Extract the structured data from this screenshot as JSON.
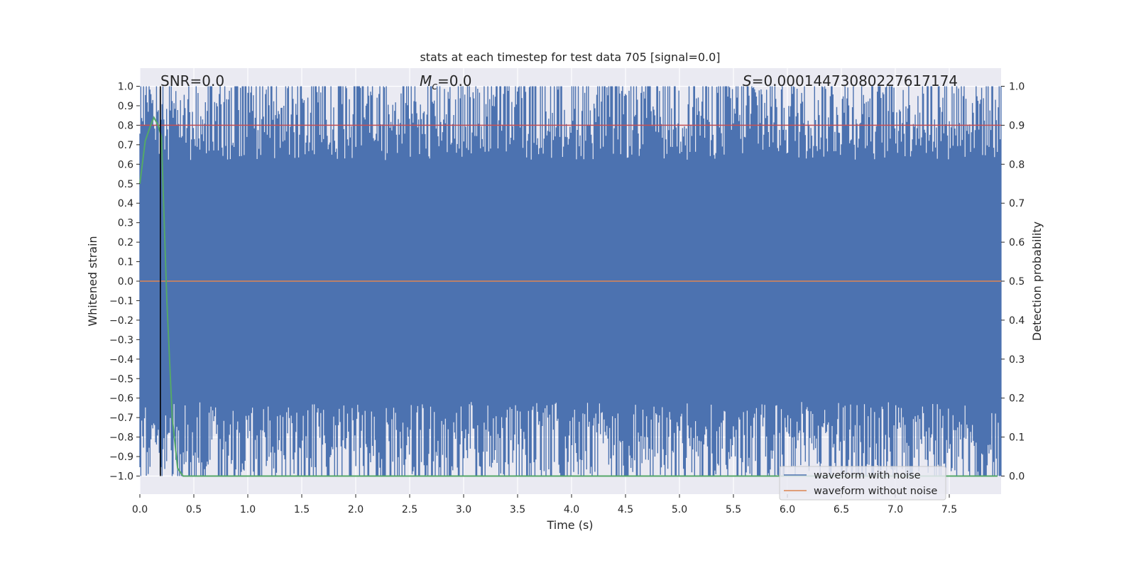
{
  "chart_data": {
    "type": "line",
    "title": "stats at each timestep for test data 705 [signal=0.0]",
    "xlabel": "Time (s)",
    "ylabel": "Whitened strain",
    "y2label": "Detection probability",
    "xlim": [
      0.0,
      8.0
    ],
    "ylim": [
      -1.0,
      1.0
    ],
    "y2lim": [
      0.0,
      1.0
    ],
    "xticks": [
      "0.0",
      "0.5",
      "1.0",
      "1.5",
      "2.0",
      "2.5",
      "3.0",
      "3.5",
      "4.0",
      "4.5",
      "5.0",
      "5.5",
      "6.0",
      "6.5",
      "7.0",
      "7.5"
    ],
    "yticks": [
      "1.0",
      "0.9",
      "0.8",
      "0.7",
      "0.6",
      "0.5",
      "0.4",
      "0.3",
      "0.2",
      "0.1",
      "0.0",
      "−0.1",
      "−0.2",
      "−0.3",
      "−0.4",
      "−0.5",
      "−0.6",
      "−0.7",
      "−0.8",
      "−0.9",
      "−1.0"
    ],
    "y2ticks": [
      "1.0",
      "0.9",
      "0.8",
      "0.7",
      "0.6",
      "0.5",
      "0.4",
      "0.3",
      "0.2",
      "0.1",
      "0.0"
    ],
    "grid": true,
    "legend_position": "bottom-right",
    "annotations": {
      "snr": "SNR=0.0",
      "mc_symbol": "M",
      "mc_sub": "c",
      "mc_value": "=0.0",
      "s_symbol": "S",
      "s_value": "=0.00014473080227617174"
    },
    "series": [
      {
        "name": "waveform with noise",
        "color": "#4c72b0",
        "axis": "left",
        "description_of_values": "whitened noise strain, saturating between -1.0 and 1.0"
      },
      {
        "name": "waveform without noise",
        "color": "#dd8452",
        "axis": "left",
        "x": [
          0.0,
          8.0
        ],
        "y": [
          0.0,
          0.0
        ]
      },
      {
        "color": "#55a868",
        "axis": "right",
        "x": [
          0.0,
          0.05,
          0.1,
          0.13,
          0.17,
          0.2,
          0.22,
          0.25,
          0.3,
          0.35,
          0.4,
          1.0,
          2.0,
          3.0,
          4.0,
          5.0,
          6.0,
          7.0,
          8.0
        ],
        "y": [
          0.75,
          0.86,
          0.9,
          0.92,
          0.9,
          0.87,
          0.7,
          0.45,
          0.15,
          0.02,
          0.0,
          0.0,
          0.0,
          0.0,
          0.0,
          0.0,
          0.0,
          0.0,
          0.0
        ]
      },
      {
        "color": "#c44e52",
        "axis": "right",
        "x": [
          0.0,
          8.0
        ],
        "y": [
          0.9,
          0.9
        ]
      }
    ],
    "vline": {
      "x": 0.19,
      "color": "#000000"
    }
  }
}
